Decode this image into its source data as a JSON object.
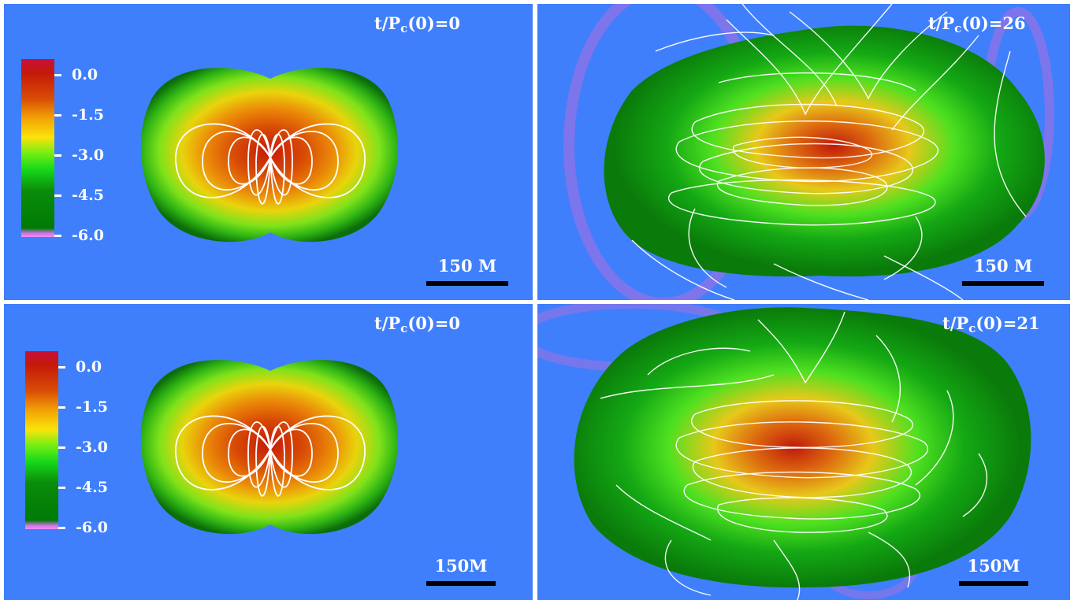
{
  "panels": [
    {
      "id": "top-left",
      "time_prefix": "t/P",
      "time_sub": "c",
      "time_suffix": "(0)=0",
      "scale_label": "150 M"
    },
    {
      "id": "top-right",
      "time_prefix": "t/P",
      "time_sub": "c",
      "time_suffix": "(0)=26",
      "scale_label": "150 M"
    },
    {
      "id": "bottom-left",
      "time_prefix": "t/P",
      "time_sub": "c",
      "time_suffix": "(0)=0",
      "scale_label": "150M"
    },
    {
      "id": "bottom-right",
      "time_prefix": "t/P",
      "time_sub": "c",
      "time_suffix": "(0)=21",
      "scale_label": "150M"
    }
  ],
  "colorbar": {
    "ticks": [
      "0.0",
      "-1.5",
      "-3.0",
      "-4.5",
      "-6.0"
    ],
    "colors": [
      "#c8103a",
      "#d84b06",
      "#fbe30a",
      "#17d81a",
      "#007a06",
      "#f08cff"
    ]
  },
  "colors": {
    "background": "#3f7ffb",
    "field_lines": "#ffffff"
  }
}
